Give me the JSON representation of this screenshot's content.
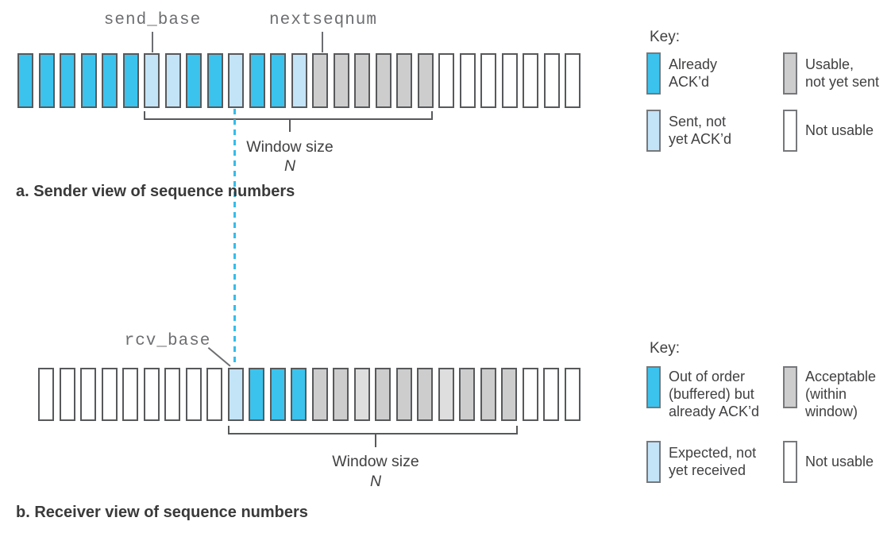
{
  "colors": {
    "acked": "#3bc3ee",
    "sent": "#c3e3f7",
    "usable": "#cdcdcd",
    "not_usable": "#ffffff",
    "buffered": "#3bc3ee",
    "expected": "#c3e3f7",
    "acceptable": "#cdcdcd",
    "acceptable_light": "#dedede",
    "box_border": "#58595b",
    "dashed_line": "#35bdea",
    "label_gray": "#6d6e71",
    "text_dark": "#414042"
  },
  "sender": {
    "send_base_label": "send_base",
    "nextseqnum_label": "nextseqnum",
    "boxes": [
      "acked",
      "acked",
      "acked",
      "acked",
      "acked",
      "acked",
      "sent",
      "sent",
      "acked",
      "acked",
      "sent",
      "acked",
      "acked",
      "sent",
      "usable",
      "usable",
      "usable",
      "usable",
      "usable",
      "usable",
      "not_usable",
      "not_usable",
      "not_usable",
      "not_usable",
      "not_usable",
      "not_usable",
      "not_usable"
    ],
    "window_label": "Window size",
    "window_n": "N",
    "caption": "a. Sender view of sequence numbers",
    "legend": {
      "title": "Key:",
      "items": [
        {
          "state": "acked",
          "lines": [
            "Already",
            "ACK’d"
          ]
        },
        {
          "state": "usable",
          "lines": [
            "Usable,",
            "not yet sent"
          ]
        },
        {
          "state": "sent",
          "lines": [
            "Sent, not",
            "yet ACK’d"
          ]
        },
        {
          "state": "not_usable",
          "lines": [
            "Not usable"
          ]
        }
      ]
    }
  },
  "receiver": {
    "rcv_base_label": "rcv_base",
    "boxes": [
      "not_usable",
      "not_usable",
      "not_usable",
      "not_usable",
      "not_usable",
      "not_usable",
      "not_usable",
      "not_usable",
      "not_usable",
      "expected",
      "buffered",
      "buffered",
      "buffered",
      "acceptable",
      "acceptable",
      "acceptable_light",
      "acceptable",
      "acceptable",
      "acceptable",
      "acceptable_light",
      "acceptable",
      "acceptable",
      "acceptable",
      "not_usable",
      "not_usable",
      "not_usable"
    ],
    "window_label": "Window size",
    "window_n": "N",
    "caption": "b. Receiver view of sequence numbers",
    "legend": {
      "title": "Key:",
      "items": [
        {
          "state": "buffered",
          "lines": [
            "Out of order",
            "(buffered) but",
            "already ACK’d"
          ]
        },
        {
          "state": "acceptable",
          "lines": [
            "Acceptable",
            "(within",
            "window)"
          ]
        },
        {
          "state": "expected",
          "lines": [
            "Expected, not",
            "yet received"
          ]
        },
        {
          "state": "not_usable",
          "lines": [
            "Not usable"
          ]
        }
      ]
    }
  }
}
